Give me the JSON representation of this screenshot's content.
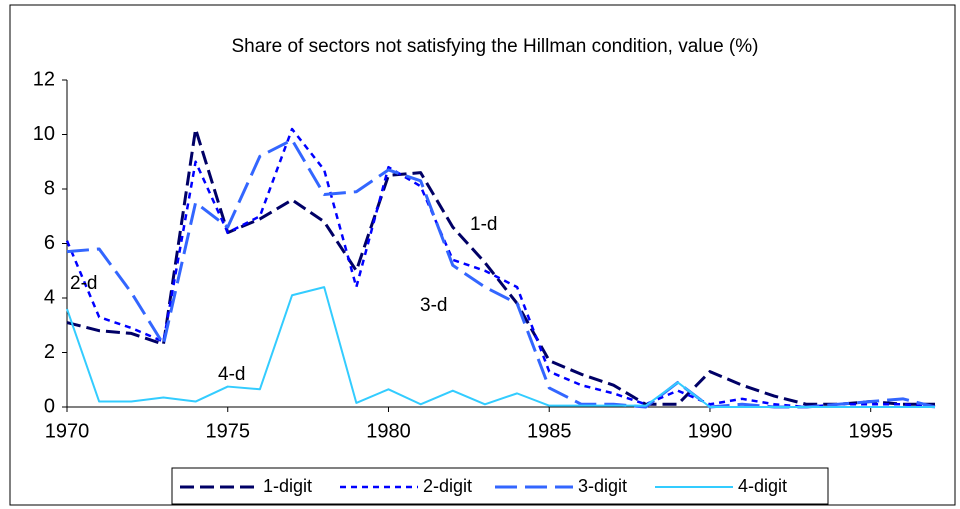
{
  "chart_data": {
    "type": "line",
    "title": "Share of sectors not satisfying the Hillman condition, value (%)",
    "x": [
      1970,
      1971,
      1972,
      1973,
      1974,
      1975,
      1976,
      1977,
      1978,
      1979,
      1980,
      1981,
      1982,
      1983,
      1984,
      1985,
      1986,
      1987,
      1988,
      1989,
      1990,
      1991,
      1992,
      1993,
      1994,
      1995,
      1996,
      1997
    ],
    "xlim": [
      1970,
      1997
    ],
    "xticks": [
      1970,
      1975,
      1980,
      1985,
      1990,
      1995
    ],
    "ylim": [
      0,
      12
    ],
    "yticks": [
      0,
      2,
      4,
      6,
      8,
      10,
      12
    ],
    "grid": false,
    "legend": "bottom",
    "series": [
      {
        "name": "1-digit",
        "color": "#000066",
        "values": [
          3.1,
          2.8,
          2.7,
          2.3,
          10.2,
          6.4,
          6.9,
          7.6,
          6.8,
          5.0,
          8.5,
          8.6,
          6.6,
          5.3,
          3.8,
          1.7,
          1.2,
          0.8,
          0.1,
          0.1,
          1.3,
          0.8,
          0.4,
          0.1,
          0.1,
          0.2,
          0.1,
          0.1
        ]
      },
      {
        "name": "2-digit",
        "color": "#0000ff",
        "values": [
          6.1,
          3.3,
          2.9,
          2.4,
          9.0,
          6.4,
          7.0,
          10.2,
          8.7,
          4.4,
          8.8,
          8.1,
          5.4,
          5.0,
          4.4,
          1.3,
          0.8,
          0.5,
          0.1,
          0.6,
          0.1,
          0.3,
          0.1,
          0.0,
          0.1,
          0.1,
          0.1,
          0.0
        ]
      },
      {
        "name": "3-digit",
        "color": "#3366ff",
        "values": [
          5.7,
          5.8,
          4.2,
          2.3,
          7.5,
          6.6,
          9.2,
          9.8,
          7.8,
          7.9,
          8.7,
          8.3,
          5.2,
          4.4,
          3.8,
          0.7,
          0.1,
          0.1,
          0.0,
          0.9,
          0.0,
          0.1,
          0.0,
          0.0,
          0.1,
          0.2,
          0.3,
          0.0
        ]
      },
      {
        "name": "4-digit",
        "color": "#33ccff",
        "values": [
          3.6,
          0.2,
          0.2,
          0.35,
          0.2,
          0.75,
          0.65,
          4.1,
          4.4,
          0.15,
          0.65,
          0.1,
          0.6,
          0.1,
          0.5,
          0.05,
          0.05,
          0.05,
          0.05,
          0.9,
          0.0,
          0.0,
          0.0,
          0.0,
          0.0,
          0.0,
          0.0,
          0.0
        ]
      }
    ],
    "annotations": [
      "1-d",
      "2-d",
      "3-d",
      "4-d"
    ]
  }
}
